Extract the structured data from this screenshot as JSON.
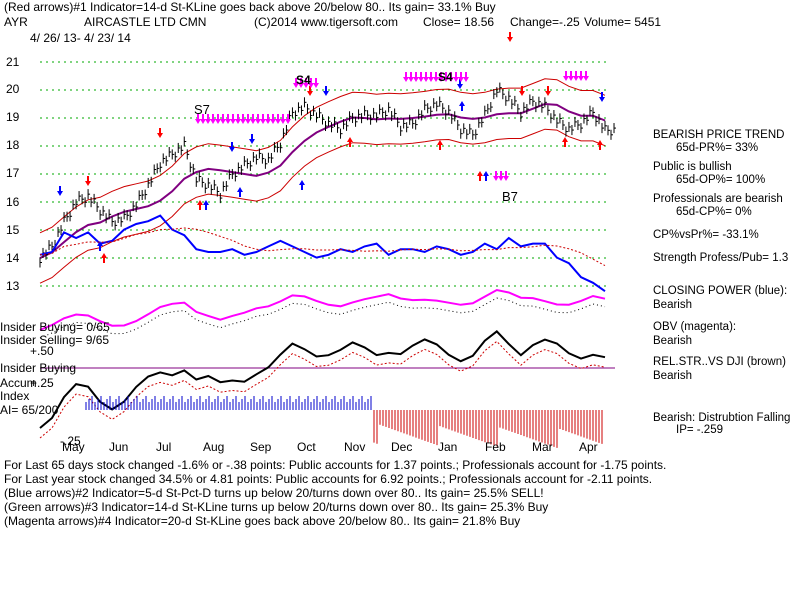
{
  "header": {
    "line1": "(Red arrows)#1 Indicator=14-d St-KLine goes back above 20/below 80.. Its gain= 33.1% Buy",
    "ticker": "AYR",
    "company": "AIRCASTLE LTD CMN",
    "copyright": "(C)2014 www.tigersoft.com",
    "close": "Close=  18.56",
    "change": "Change=-.25",
    "volume": "Volume= 5451",
    "date_range": "4/ 26/ 13-  4/ 23/ 14"
  },
  "y_labels": [
    "21",
    "20",
    "19",
    "18",
    "17",
    "16",
    "15",
    "14",
    "13"
  ],
  "month_labels": [
    "May",
    "Jun",
    "Jul",
    "Aug",
    "Sep",
    "Oct",
    "Nov",
    "Dec",
    "Jan",
    "Feb",
    "Mar",
    "Apr"
  ],
  "annotations": {
    "s7": "S7",
    "b7": "B7",
    "s4a": "S4",
    "s4b": "S4"
  },
  "left_panel": {
    "insider_buying": "Insider Buying= 0/65",
    "insider_selling": "Insider Selling= 9/65",
    "plus50": "+.50",
    "insider_buying2": "Insider Buying",
    "accum": "Accum",
    "plus25": "+.25",
    "index": "Index",
    "ai": "AI= 65/200",
    "minus25": "-.25"
  },
  "right_panel": {
    "trend_title": "BEARISH PRICE TREND",
    "pr": "65d-PR%= 33%",
    "public": "Public is bullish",
    "op": "65d-OP%= 100%",
    "professionals": "Professionals are bearish",
    "cp": "65d-CP%= 0%",
    "cpvspr": "CP%vsPr%= -33.1%",
    "strength": "Strength Profess/Pub= 1.3",
    "closing_power": "CLOSING POWER (blue):",
    "cp_val": "Bearish",
    "obv": "OBV (magenta):",
    "obv_val": "Bearish",
    "relstr": "REL.STR..VS DJI (brown)",
    "relstr_val": "Bearish",
    "distribution": "Bearish:  Distrubtion Falling",
    "ip": "IP= -.259"
  },
  "footer": {
    "line1": "For Last 65 days stock changed -1.6% or -.38 points:  Public accounts for  1.37 points.;  Professionals account for -1.75 points.",
    "line2": "For Last year stock changed  34.5% or  4.81 points:  Public accounts for  6.92 points.;  Professionals account for -2.11 points.",
    "line3": "(Blue arrows)#2 Indicator=5-d St-Pct-D turns up below 20/turns down over 80.. Its gain= 25.5% SELL!",
    "line4": "(Green arrows)#3 Indicator=14-d St-KLine turns up below 20/turns down over 80.. Its gain= 25.3% Buy",
    "line5": "(Magenta arrows)#4 Indicator=20-d St-KLine goes back above 20/below 80.. Its gain= 21.8% Buy"
  },
  "colors": {
    "price": "#000000",
    "band": "#cc0000",
    "ma": "#800080",
    "closing_power": "#0000ff",
    "obv": "#ff00ff",
    "grid": "#00aa00",
    "red_arrow": "#ff0000",
    "blue_arrow": "#0000ff",
    "magenta_arrow": "#ff00ff",
    "accum_pos": "#0000cc",
    "accum_neg": "#cc0000"
  },
  "chart_data": {
    "type": "line",
    "title": "AIRCASTLE LTD CMN",
    "ylim": [
      12.5,
      21.5
    ],
    "months": [
      "May",
      "Jun",
      "Jul",
      "Aug",
      "Sep",
      "Oct",
      "Nov",
      "Dec",
      "Jan",
      "Feb",
      "Mar",
      "Apr"
    ],
    "series": [
      {
        "name": "Close",
        "values": [
          14.0,
          14.4,
          15.3,
          16.0,
          16.2,
          15.7,
          15.3,
          15.4,
          15.9,
          16.6,
          17.4,
          17.7,
          18.0,
          16.8,
          16.6,
          16.3,
          17.0,
          17.3,
          17.6,
          17.5,
          18.1,
          19.2,
          19.4,
          19.1,
          18.8,
          18.6,
          19.0,
          19.1,
          19.1,
          19.3,
          18.7,
          18.8,
          19.3,
          19.5,
          19.2,
          18.6,
          18.4,
          19.1,
          20.0,
          19.7,
          19.2,
          19.6,
          19.4,
          18.9,
          18.6,
          18.8,
          19.2,
          18.56
        ]
      },
      {
        "name": "Closing Power",
        "values": [
          13.9,
          14.0,
          14.7,
          14.5,
          14.7,
          14.3,
          14.4,
          14.8,
          15.0,
          15.1,
          15.3,
          14.8,
          14.6,
          14.1,
          14.0,
          14.0,
          14.1,
          13.9,
          14.0,
          14.2,
          14.4,
          14.2,
          14.0,
          13.8,
          13.9,
          14.1,
          14.0,
          14.2,
          14.3,
          13.9,
          14.1,
          14.1,
          14.0,
          14.2,
          14.1,
          13.9,
          14.0,
          14.3,
          14.1,
          14.5,
          14.2,
          14.3,
          14.3,
          13.8,
          13.6,
          13.1,
          12.9,
          12.6
        ]
      }
    ]
  }
}
